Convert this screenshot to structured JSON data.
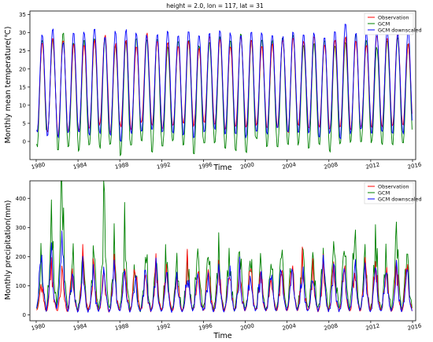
{
  "chart_data": [
    {
      "type": "line",
      "title": "height = 2.0, lon = 117, lat = 31",
      "xlabel": "Time",
      "ylabel": "Monthly mean temperature(℃)",
      "xlim": [
        1979.4,
        2016.3
      ],
      "ylim": [
        -5,
        36
      ],
      "x_ticks": [
        1980,
        1984,
        1988,
        1992,
        1996,
        2000,
        2004,
        2008,
        2012,
        2016
      ],
      "y_ticks": [
        0,
        5,
        10,
        15,
        20,
        25,
        30,
        35
      ],
      "legend_position": "top-right",
      "x_start": 1980.04,
      "x_step_years": 0.08333,
      "series": [
        {
          "name": "Observation",
          "color": "#ff0000",
          "summer_peaks": [
            27.5,
            29,
            28.5,
            27,
            26.5,
            28,
            29.5,
            27,
            28.5,
            26.5,
            30,
            28,
            27.5,
            26.5,
            28,
            26,
            29,
            28.5,
            26.5,
            29,
            28,
            26.5,
            27,
            28.5,
            29,
            28,
            29,
            27,
            28,
            29,
            28,
            27,
            29.5,
            29,
            30,
            27
          ],
          "winter_lows": [
            2,
            2.5,
            1.5,
            2.5,
            3,
            3.5,
            4.5,
            2,
            4,
            3,
            5,
            4,
            3,
            4,
            4.5,
            4,
            5,
            4.5,
            3,
            4,
            3.5,
            4.5,
            3.5,
            4,
            2.5,
            4.5,
            3,
            4,
            3.5,
            4,
            3,
            4,
            3.5,
            4,
            4,
            4.5
          ]
        },
        {
          "name": "GCM",
          "color": "#008000",
          "summer_peaks": [
            28,
            28.5,
            30,
            27.5,
            28,
            28.5,
            29,
            27,
            28,
            28.5,
            28,
            29,
            26.5,
            28,
            28,
            27,
            27.5,
            29,
            28,
            30,
            28.5,
            28,
            28,
            29,
            29.5,
            27,
            27.5,
            28,
            27,
            27.5,
            29.5,
            28,
            26,
            28,
            29,
            27
          ],
          "winter_lows": [
            -1.5,
            2,
            -3,
            -2,
            -3,
            -1.5,
            -2,
            -1,
            -4,
            -1,
            -0.5,
            -3,
            -2,
            0,
            -1,
            -3.5,
            -0.5,
            -1,
            -2,
            -3,
            -3.5,
            0,
            -1.5,
            -2,
            -1,
            -1,
            -2,
            -1,
            -3,
            -1,
            -0.5,
            -1,
            -0.5,
            -1,
            -1.5,
            -1
          ]
        },
        {
          "name": "GCM downscaled",
          "color": "#0000ff",
          "summer_peaks": [
            29.5,
            31.5,
            27.5,
            30,
            30.5,
            31.5,
            29,
            30.5,
            31,
            30,
            29.5,
            29.5,
            30.5,
            29.5,
            30.5,
            29.5,
            30,
            31,
            30,
            29.5,
            31,
            30,
            30,
            29,
            30.5,
            30,
            30,
            29.5,
            31,
            33,
            30.5,
            30,
            30.5,
            31,
            30,
            31
          ],
          "winter_lows": [
            2.5,
            1,
            1,
            2,
            2,
            1.5,
            2,
            1.5,
            0,
            2,
            2.5,
            3,
            2,
            2,
            1.5,
            1,
            2,
            3,
            2,
            2,
            1,
            2,
            2,
            3,
            2.5,
            2,
            2,
            1,
            2,
            0.5,
            2,
            3,
            2,
            2.5,
            2,
            2
          ]
        }
      ]
    },
    {
      "type": "line",
      "xlabel": "Time",
      "ylabel": "Monthly precipitation(mm)",
      "xlim": [
        1979.4,
        2016.3
      ],
      "ylim": [
        -20,
        460
      ],
      "x_ticks": [
        1980,
        1984,
        1988,
        1992,
        1996,
        2000,
        2004,
        2008,
        2012,
        2016
      ],
      "y_ticks": [
        0,
        100,
        200,
        300,
        400
      ],
      "legend_position": "top-right",
      "x_start": 1980.04,
      "x_step_years": 0.08333,
      "series": [
        {
          "name": "Observation",
          "color": "#ff0000",
          "wet_season_peaks": [
            130,
            170,
            155,
            160,
            190,
            170,
            150,
            175,
            160,
            190,
            150,
            170,
            185,
            140,
            175,
            155,
            165,
            165,
            185,
            150,
            190,
            165,
            160,
            170,
            170,
            180,
            150,
            165,
            180,
            165,
            170,
            175,
            185,
            160,
            180,
            175
          ]
        },
        {
          "name": "GCM",
          "color": "#008000",
          "wet_season_peaks": [
            170,
            330,
            440,
            180,
            200,
            200,
            320,
            180,
            270,
            160,
            200,
            180,
            200,
            180,
            200,
            220,
            240,
            210,
            200,
            250,
            190,
            200,
            180,
            260,
            200,
            240,
            230,
            260,
            250,
            240,
            310,
            210,
            240,
            220,
            290,
            240
          ]
        },
        {
          "name": "GCM downscaled",
          "color": "#0000ff",
          "wet_season_peaks": [
            220,
            210,
            260,
            140,
            155,
            150,
            165,
            155,
            150,
            140,
            165,
            155,
            150,
            140,
            165,
            150,
            150,
            150,
            170,
            155,
            165,
            150,
            150,
            170,
            175,
            160,
            160,
            160,
            170,
            165,
            185,
            155,
            160,
            165,
            175,
            180
          ]
        }
      ]
    }
  ]
}
